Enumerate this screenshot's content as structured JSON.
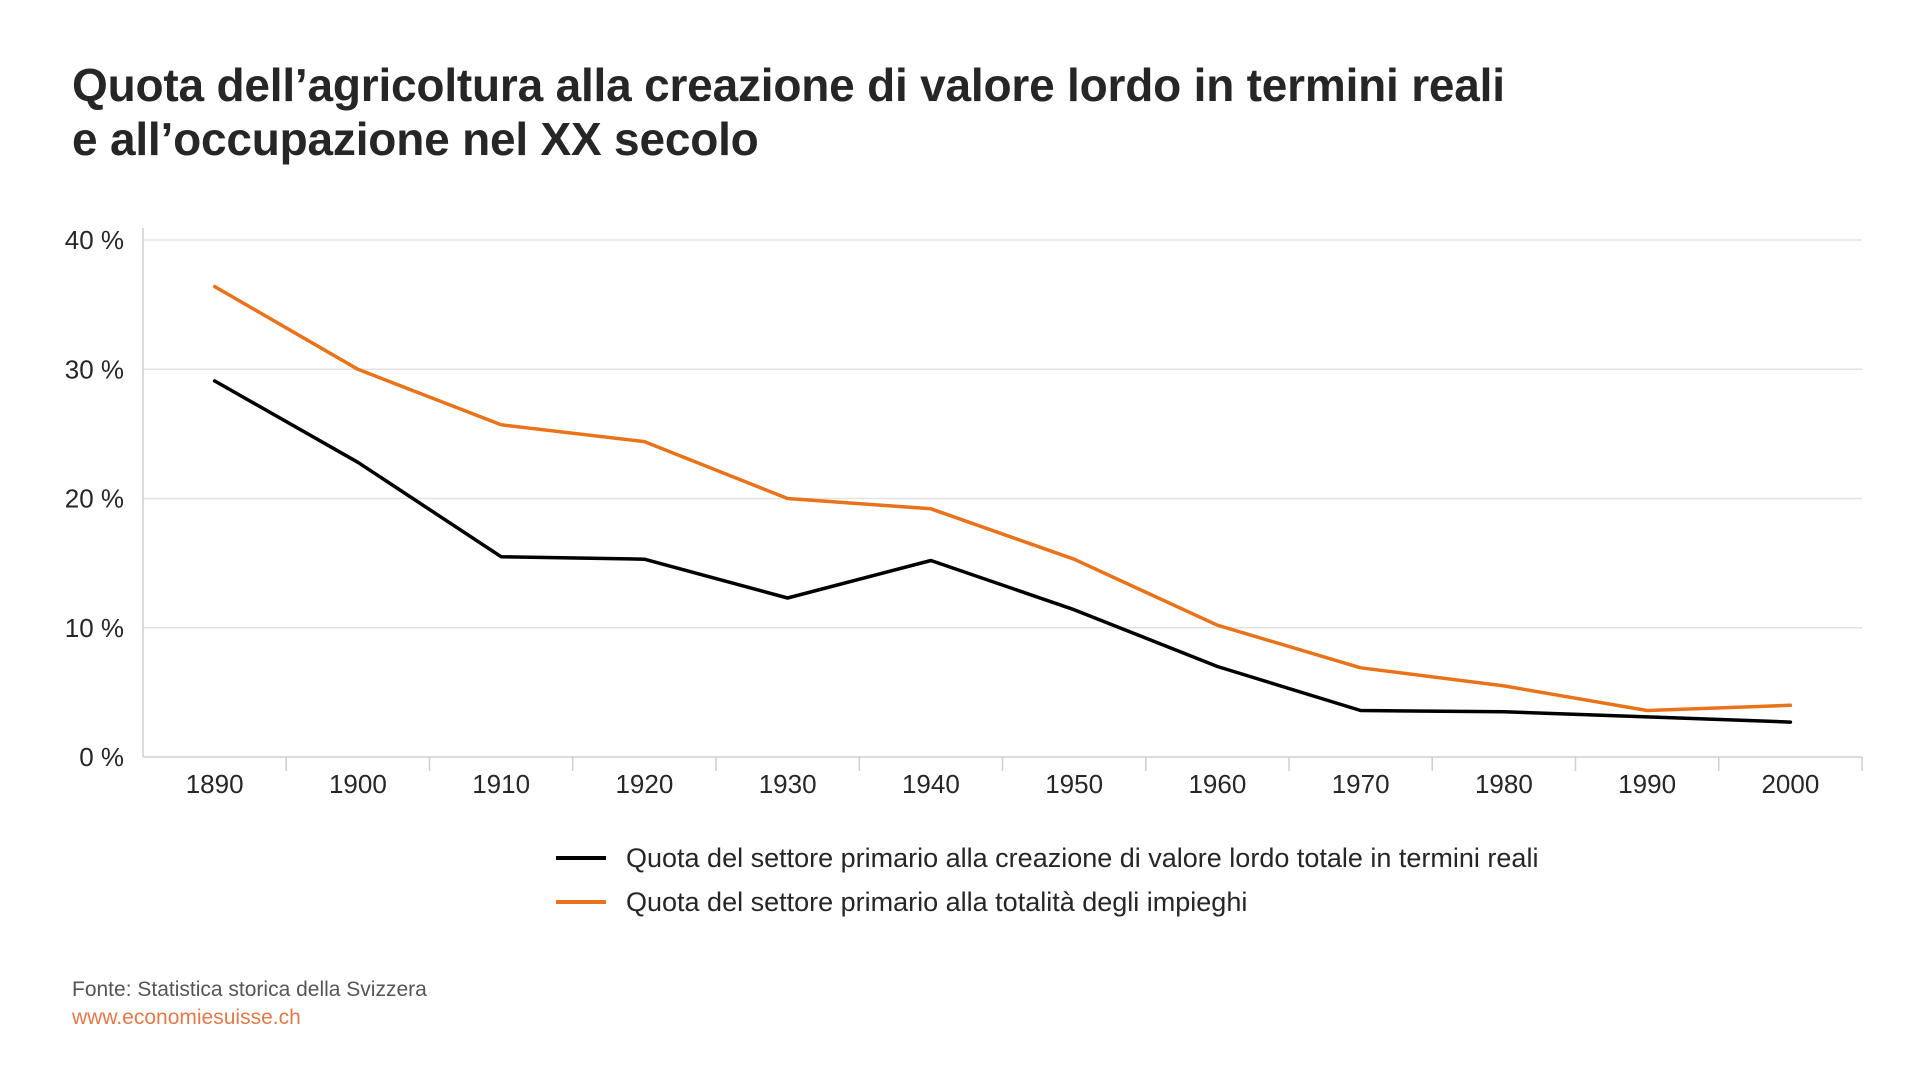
{
  "title_lines": [
    "Quota dell’agricoltura alla creazione di valore lordo in termini reali",
    "e all’occupazione nel XX secolo"
  ],
  "footer": {
    "source": "Fonte: Statistica storica della Svizzera",
    "website": "www.economiesuisse.ch"
  },
  "colors": {
    "series_value_added": "#000000",
    "series_employment": "#e8731a",
    "website": "#e07a4a",
    "grid": "#e3e3e3"
  },
  "chart_data": {
    "type": "line",
    "title": "Quota dell’agricoltura alla creazione di valore lordo in termini reali e all’occupazione nel XX secolo",
    "xlabel": "",
    "ylabel": "",
    "x": [
      "1890",
      "1900",
      "1910",
      "1920",
      "1930",
      "1940",
      "1950",
      "1960",
      "1970",
      "1980",
      "1990",
      "2000"
    ],
    "ylim": [
      0,
      40
    ],
    "yticks": [
      0,
      10,
      20,
      30,
      40
    ],
    "ytick_labels": [
      "0 %",
      "10 %",
      "20 %",
      "30 %",
      "40 %"
    ],
    "grid": true,
    "legend_position": "bottom",
    "series": [
      {
        "name": "Quota del settore primario alla creazione di valore lordo totale in termini reali",
        "color": "#000000",
        "values": [
          29.1,
          22.8,
          15.5,
          15.3,
          12.3,
          15.2,
          11.4,
          7.0,
          3.6,
          3.5,
          3.1,
          2.7
        ]
      },
      {
        "name": "Quota del settore primario alla totalità degli impieghi",
        "color": "#e8731a",
        "values": [
          36.4,
          30.0,
          25.7,
          24.4,
          20.0,
          19.2,
          15.3,
          10.2,
          6.9,
          5.5,
          3.6,
          4.0
        ]
      }
    ]
  }
}
